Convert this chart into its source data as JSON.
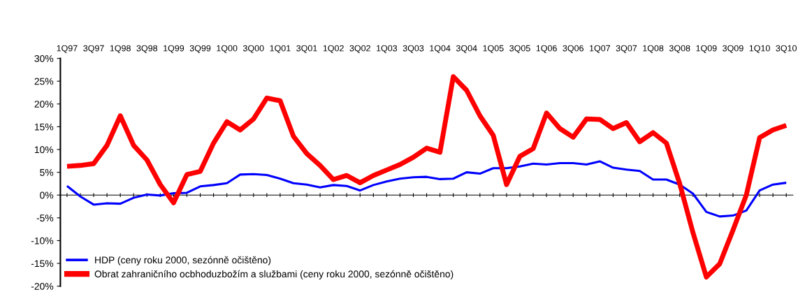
{
  "chart_data": {
    "type": "line",
    "categories": [
      "1Q97",
      null,
      "3Q97",
      null,
      "1Q98",
      null,
      "3Q98",
      null,
      "1Q99",
      null,
      "3Q99",
      null,
      "1Q00",
      null,
      "3Q00",
      null,
      "1Q01",
      null,
      "3Q01",
      null,
      "1Q02",
      null,
      "3Q02",
      null,
      "1Q03",
      null,
      "3Q03",
      null,
      "1Q04",
      null,
      "3Q04",
      null,
      "1Q05",
      null,
      "3Q05",
      null,
      "1Q06",
      null,
      "3Q06",
      null,
      "1Q07",
      null,
      "3Q07",
      null,
      "1Q08",
      null,
      "3Q08",
      null,
      "1Q09",
      null,
      "3Q09",
      null,
      "1Q10",
      null,
      "3Q10"
    ],
    "series": [
      {
        "name": "HDP (ceny roku 2000, sezónně očištěno)",
        "color": "#0000ff",
        "values": [
          2.0,
          -0.3,
          -2.1,
          -1.8,
          -1.9,
          -0.6,
          0.1,
          -0.1,
          0.4,
          0.5,
          1.9,
          2.2,
          2.6,
          4.5,
          4.6,
          4.4,
          3.6,
          2.6,
          2.3,
          1.7,
          2.2,
          2.0,
          1.0,
          2.2,
          3.0,
          3.6,
          3.9,
          4.0,
          3.5,
          3.6,
          5.0,
          4.7,
          5.9,
          5.9,
          6.3,
          6.9,
          6.7,
          7.0,
          7.0,
          6.7,
          7.4,
          6.0,
          5.6,
          5.3,
          3.4,
          3.4,
          2.3,
          0.3,
          -3.7,
          -4.7,
          -4.5,
          -3.4,
          1.0,
          2.3,
          2.7
        ]
      },
      {
        "name": "Obrat zahraničního ocbhoduzbožím a službami (ceny roku 2000, sezónně očištěno)",
        "color": "#ff0000",
        "values": [
          6.3,
          6.5,
          6.9,
          10.9,
          17.4,
          10.9,
          7.7,
          2.3,
          -1.7,
          4.5,
          5.2,
          11.4,
          16.1,
          14.3,
          16.7,
          21.3,
          20.7,
          12.9,
          9.1,
          6.5,
          3.4,
          4.3,
          2.7,
          4.3,
          5.5,
          6.7,
          8.3,
          10.3,
          9.4,
          26.0,
          23.0,
          17.4,
          13.1,
          2.3,
          8.5,
          10.2,
          18.0,
          14.6,
          12.7,
          16.7,
          16.6,
          14.6,
          15.9,
          11.7,
          13.7,
          11.4,
          2.5,
          -8.3,
          -18.0,
          -15.1,
          -7.7,
          0.0,
          12.6,
          14.3,
          15.3
        ]
      }
    ],
    "ylim": [
      -20,
      30
    ],
    "yticks": [
      {
        "value": -20,
        "label": "-20%"
      },
      {
        "value": -15,
        "label": "-15%"
      },
      {
        "value": -10,
        "label": "-10%"
      },
      {
        "value": -5,
        "label": "-5%"
      },
      {
        "value": 0,
        "label": "0%"
      },
      {
        "value": 5,
        "label": "5%"
      },
      {
        "value": 10,
        "label": "10%"
      },
      {
        "value": 15,
        "label": "15%"
      },
      {
        "value": 20,
        "label": "20%"
      },
      {
        "value": 25,
        "label": "25%"
      },
      {
        "value": 30,
        "label": "30%"
      }
    ],
    "legend": "bottom left",
    "marker": "none",
    "line_style": "solid"
  }
}
